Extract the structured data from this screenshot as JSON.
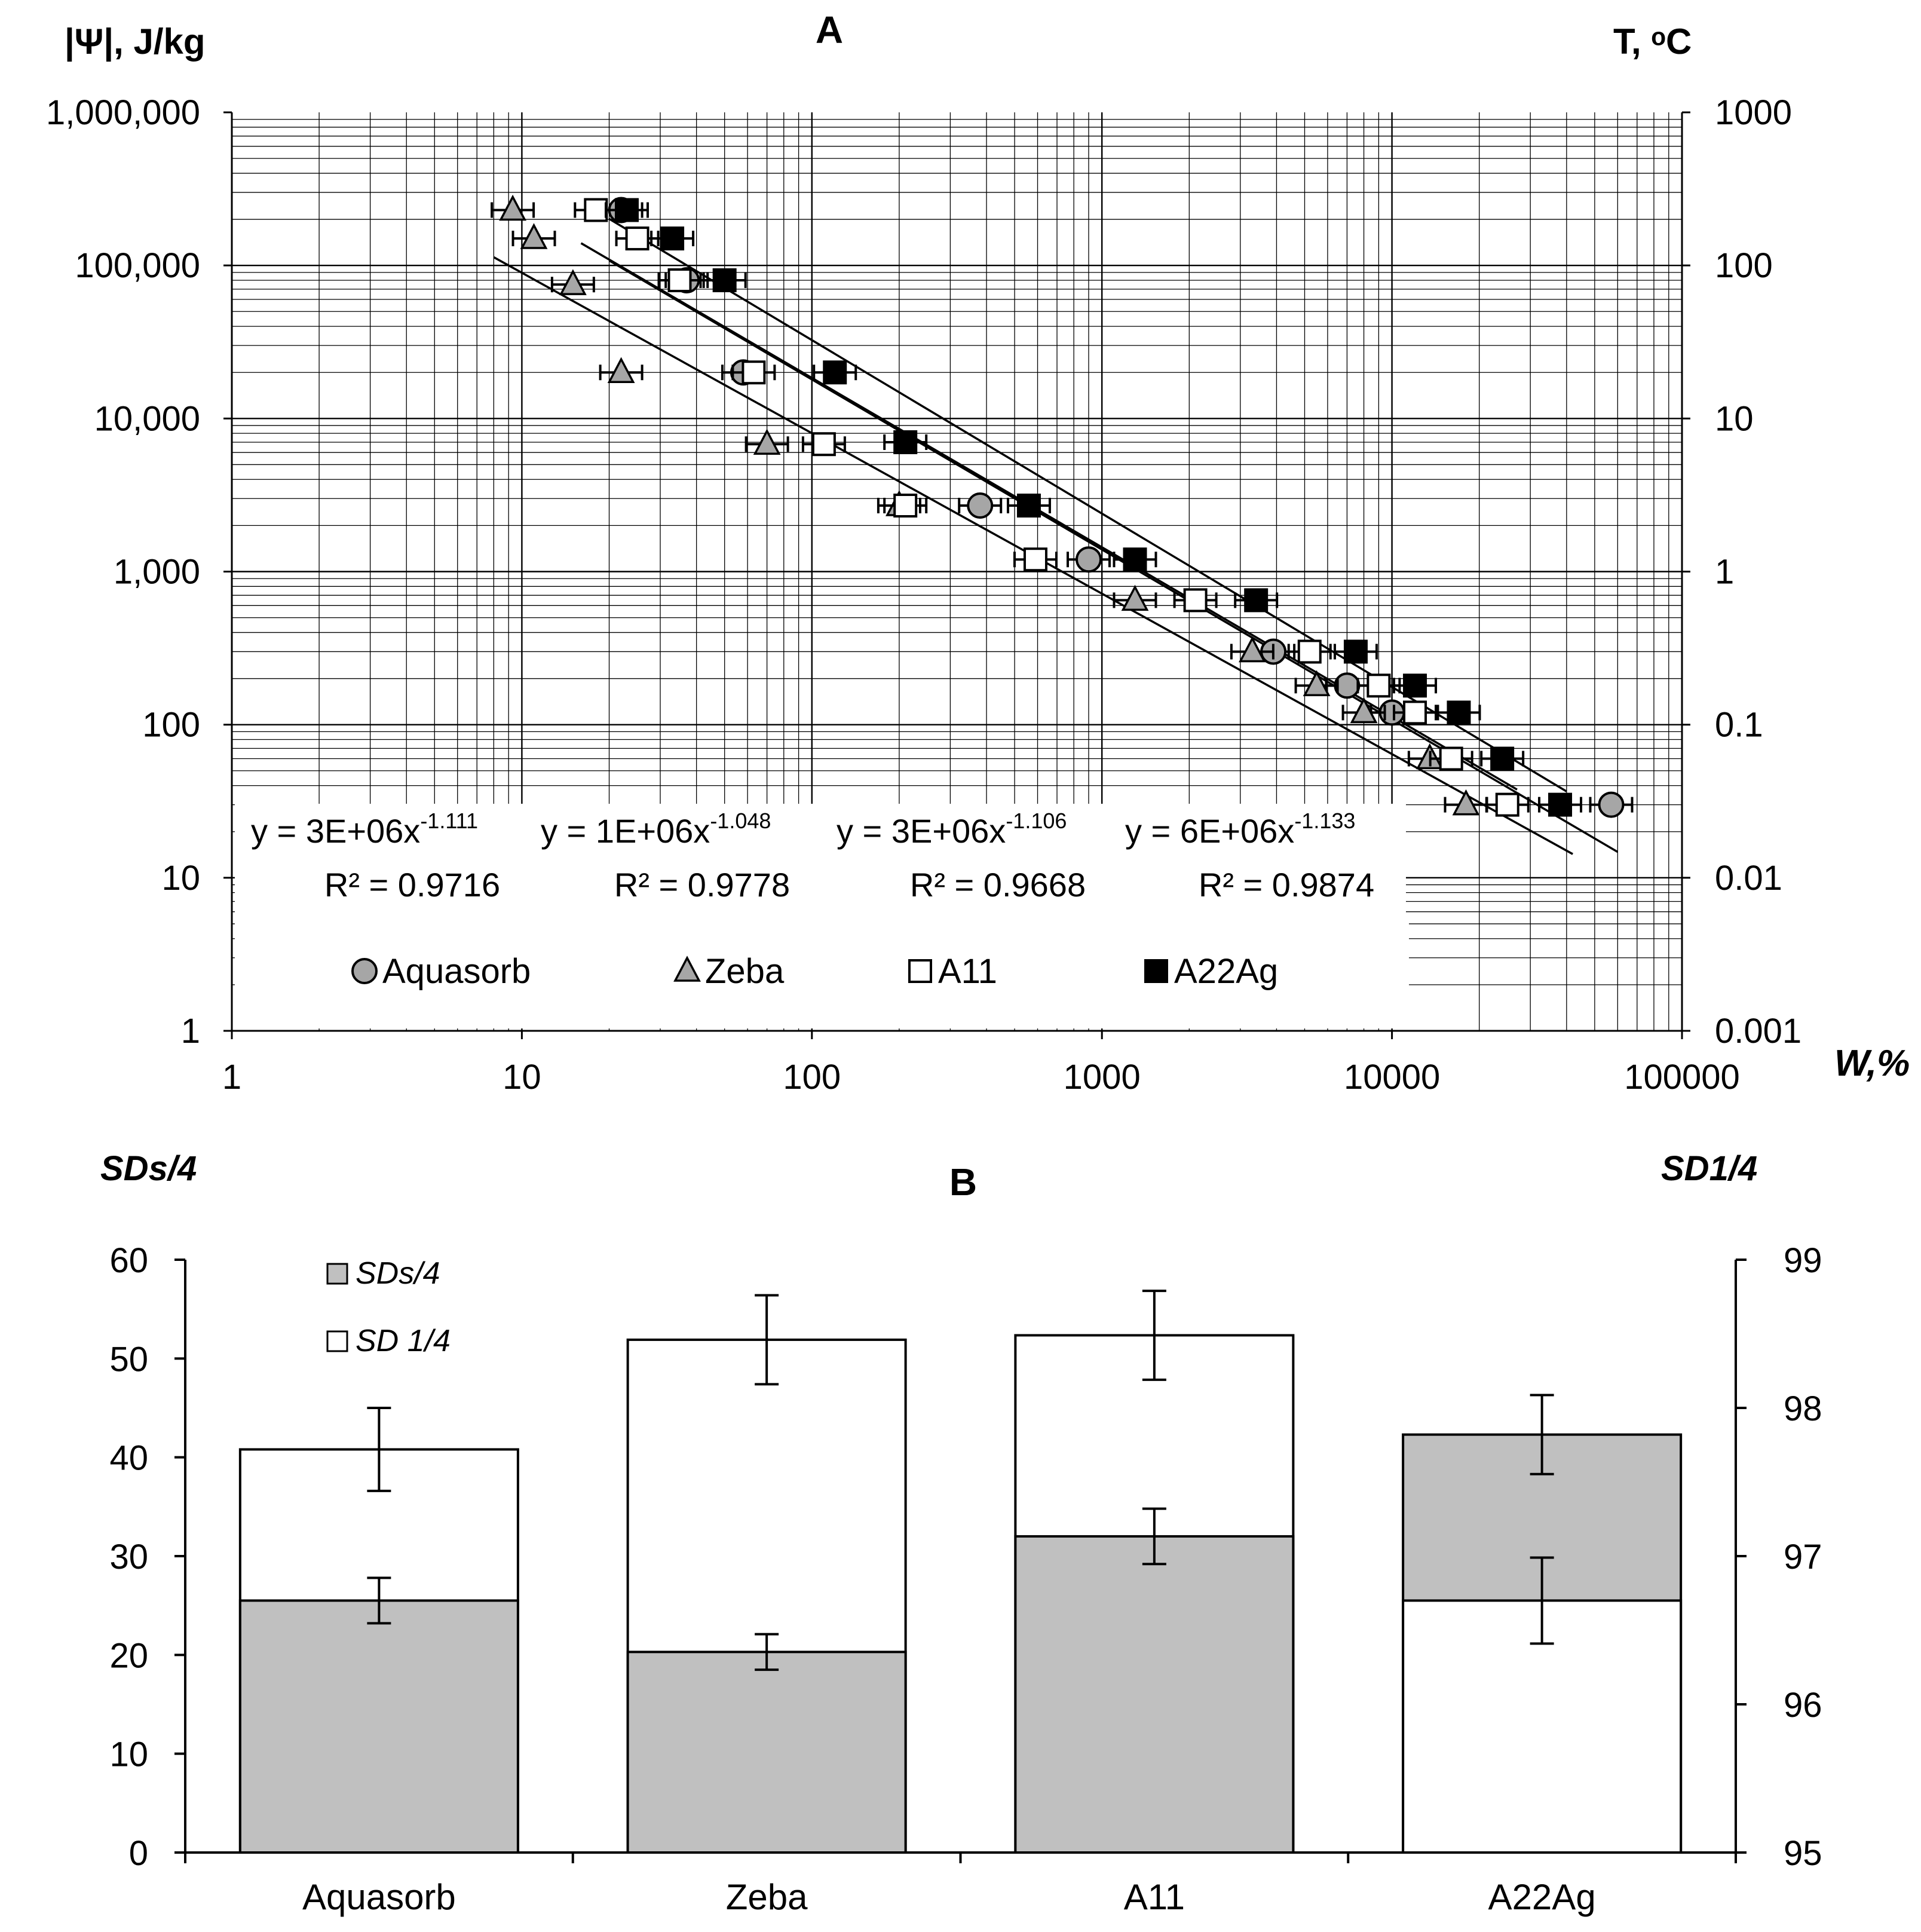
{
  "chart_data": [
    {
      "type": "scatter",
      "panel_label": "A",
      "ylabel_left": "|Ψ|, J/kg",
      "ylabel_right": "T, ᵒC",
      "xlabel": "W,%",
      "x_scale": "log",
      "y_scale": "log",
      "xlim": [
        1,
        100000
      ],
      "ylim": [
        1,
        1000000
      ],
      "y2lim": [
        0.001,
        1000
      ],
      "grid": true,
      "x_ticks": [
        "1",
        "10",
        "100",
        "1000",
        "10000",
        "100000"
      ],
      "y_ticks": [
        "1",
        "10",
        "100",
        "1,000",
        "10,000",
        "100,000",
        "1,000,000"
      ],
      "y2_ticks": [
        "0.001",
        "0.01",
        "0.1",
        "1",
        "10",
        "100",
        "1000"
      ],
      "legend_position": "bottom",
      "series": [
        {
          "name": "Aquasorb",
          "marker": "circle",
          "color": "#a6a6a6",
          "fit": {
            "a": 3000000,
            "b": -1.111,
            "eq": "y = 3E+06x",
            "exp": "-1.111",
            "r2": "R² = 0.9716"
          },
          "points": [
            {
              "x": 22,
              "y": 230000
            },
            {
              "x": 37,
              "y": 80000
            },
            {
              "x": 58,
              "y": 20000
            },
            {
              "x": 380,
              "y": 2700
            },
            {
              "x": 900,
              "y": 1200
            },
            {
              "x": 3900,
              "y": 300
            },
            {
              "x": 7000,
              "y": 180
            },
            {
              "x": 10000,
              "y": 120
            },
            {
              "x": 57000,
              "y": 30
            }
          ]
        },
        {
          "name": "Zeba",
          "marker": "triangle",
          "color": "#a6a6a6",
          "fit": {
            "a": 1000000,
            "b": -1.048,
            "eq": "y = 1E+06x",
            "exp": "-1.048",
            "r2": "R² = 0.9778"
          },
          "points": [
            {
              "x": 9.3,
              "y": 230000
            },
            {
              "x": 11,
              "y": 150000
            },
            {
              "x": 15,
              "y": 75000
            },
            {
              "x": 22,
              "y": 20000
            },
            {
              "x": 70,
              "y": 6800
            },
            {
              "x": 200,
              "y": 2700
            },
            {
              "x": 1300,
              "y": 650
            },
            {
              "x": 3300,
              "y": 300
            },
            {
              "x": 5500,
              "y": 180
            },
            {
              "x": 8000,
              "y": 120
            },
            {
              "x": 13500,
              "y": 60
            },
            {
              "x": 18000,
              "y": 30
            }
          ]
        },
        {
          "name": "A11",
          "marker": "square",
          "color": "#ffffff",
          "fit": {
            "a": 3000000,
            "b": -1.106,
            "eq": "y = 3E+06x",
            "exp": "-1.106",
            "r2": "R² = 0.9668"
          },
          "points": [
            {
              "x": 18,
              "y": 230000
            },
            {
              "x": 25,
              "y": 150000
            },
            {
              "x": 35,
              "y": 80000
            },
            {
              "x": 63,
              "y": 20000
            },
            {
              "x": 110,
              "y": 6800
            },
            {
              "x": 210,
              "y": 2700
            },
            {
              "x": 590,
              "y": 1200
            },
            {
              "x": 2100,
              "y": 650
            },
            {
              "x": 5200,
              "y": 300
            },
            {
              "x": 9000,
              "y": 180
            },
            {
              "x": 12000,
              "y": 120
            },
            {
              "x": 16000,
              "y": 60
            },
            {
              "x": 25000,
              "y": 30
            }
          ]
        },
        {
          "name": "A22Ag",
          "marker": "square",
          "color": "#000000",
          "fit": {
            "a": 6000000,
            "b": -1.133,
            "eq": "y = 6E+06x",
            "exp": "-1.133",
            "r2": "R² = 0.9874"
          },
          "points": [
            {
              "x": 23,
              "y": 230000
            },
            {
              "x": 33,
              "y": 150000
            },
            {
              "x": 50,
              "y": 80000
            },
            {
              "x": 120,
              "y": 20000
            },
            {
              "x": 210,
              "y": 7000
            },
            {
              "x": 560,
              "y": 2700
            },
            {
              "x": 1300,
              "y": 1200
            },
            {
              "x": 3400,
              "y": 650
            },
            {
              "x": 7500,
              "y": 300
            },
            {
              "x": 12000,
              "y": 180
            },
            {
              "x": 17000,
              "y": 120
            },
            {
              "x": 24000,
              "y": 60
            },
            {
              "x": 38000,
              "y": 30
            }
          ]
        }
      ]
    },
    {
      "type": "bar",
      "panel_label": "B",
      "ylabel_left": "SDs/4",
      "ylabel_right": "SD1/4",
      "categories": [
        "Aquasorb",
        "Zeba",
        "A11",
        "A22Ag"
      ],
      "ylim": [
        0,
        60
      ],
      "y2lim": [
        95,
        99
      ],
      "y_ticks": [
        "0",
        "10",
        "20",
        "30",
        "40",
        "50",
        "60"
      ],
      "y2_ticks": [
        "95",
        "96",
        "97",
        "98",
        "99"
      ],
      "legend_position": "top-left",
      "series": [
        {
          "name": "SDs/4",
          "axis": "left",
          "color": "#c0c0c0",
          "values": [
            25.5,
            20.3,
            32.0,
            42.3
          ],
          "errors": [
            2.3,
            1.8,
            2.8,
            4.0
          ]
        },
        {
          "name": "SD 1/4",
          "axis": "right",
          "color": "#ffffff",
          "values": [
            97.72,
            98.46,
            98.49,
            96.7
          ],
          "errors": [
            0.28,
            0.3,
            0.3,
            0.29
          ]
        }
      ]
    }
  ]
}
